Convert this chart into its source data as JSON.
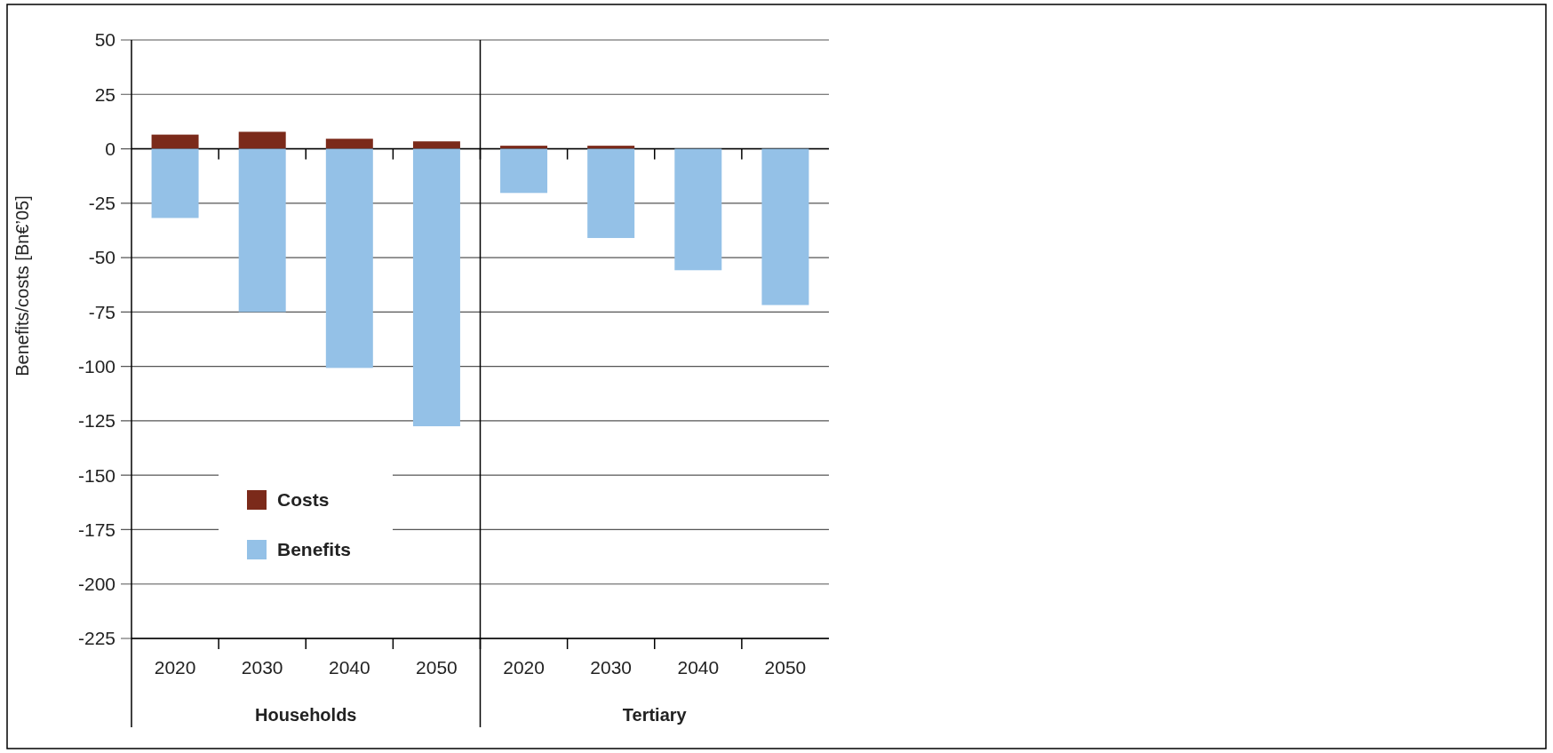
{
  "chart_data": {
    "type": "bar",
    "ylabel": "Benefits/costs [Bn€’05]",
    "categories": [
      "2020",
      "2030",
      "2040",
      "2050",
      "2020",
      "2030",
      "2040",
      "2050"
    ],
    "series": [
      {
        "name": "Costs",
        "color": "#7b2a1a",
        "values": [
          6.5,
          7.8,
          4.6,
          3.4,
          1.4,
          1.4,
          null,
          null
        ]
      },
      {
        "name": "Benefits",
        "color": "#94c1e7",
        "values": [
          -31.8,
          -75,
          -100.7,
          -127.5,
          -20.3,
          -41,
          -55.8,
          -71.8
        ]
      }
    ],
    "stacked": true,
    "ylim": [
      -225,
      50
    ],
    "yticks": [
      -225,
      -200,
      -175,
      -150,
      -125,
      -100,
      -75,
      -50,
      -25,
      0,
      25,
      50
    ],
    "grid": "y",
    "legend": "bottom left",
    "annotations": [
      "Households",
      "Tertiary"
    ]
  }
}
